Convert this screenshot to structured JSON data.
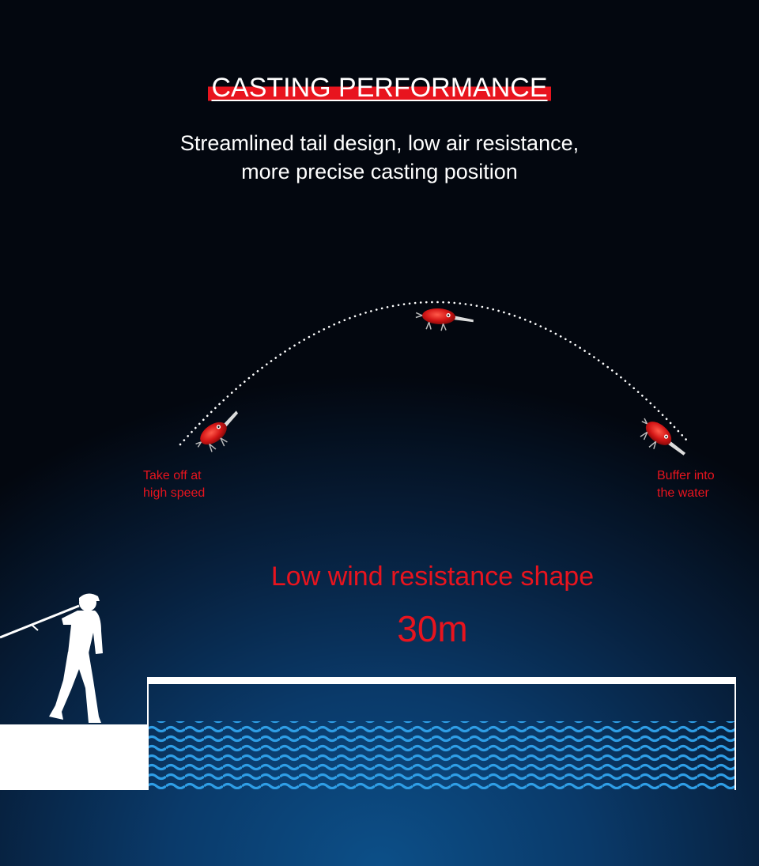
{
  "header": {
    "title": "CASTING PERFORMANCE",
    "subtitle_lines": [
      "Streamlined tail design, low air resistance,",
      "more precise casting position"
    ]
  },
  "labels": {
    "takeoff_line1": "Take off at",
    "takeoff_line2": "high speed",
    "buffer_line1": "Buffer into",
    "buffer_line2": "the water",
    "shape": "Low wind resistance shape",
    "distance": "30m"
  },
  "colors": {
    "accent": "#e8141e",
    "wave": "#2f9ee6",
    "text": "#ffffff"
  },
  "icons": [
    "fishing-lure-icon",
    "angler-silhouette-icon",
    "water-wave-icon"
  ]
}
